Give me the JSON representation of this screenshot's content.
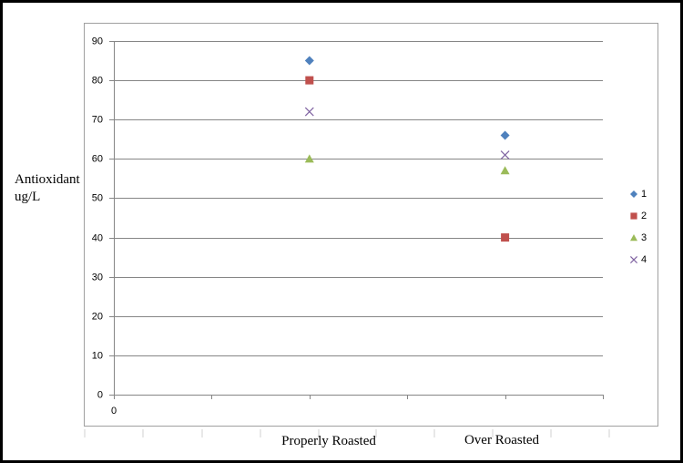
{
  "chart_data": {
    "type": "scatter",
    "y_label": "Antioxidant ug/L",
    "annotations": [
      "Properly Roasted",
      "Over Roasted"
    ],
    "xlim": [
      0,
      5
    ],
    "xticks": [
      0
    ],
    "x_tick_marks": [
      0,
      1,
      2,
      3,
      4,
      5
    ],
    "ylim": [
      0,
      90
    ],
    "yticks": [
      0,
      10,
      20,
      30,
      40,
      50,
      60,
      70,
      80,
      90
    ],
    "grid": true,
    "legend": "right",
    "series": [
      {
        "name": "1",
        "color": "#4f81bd",
        "marker": "diamond",
        "x": [
          2,
          4
        ],
        "values": [
          85,
          66
        ]
      },
      {
        "name": "2",
        "color": "#c0504d",
        "marker": "square",
        "x": [
          2,
          4
        ],
        "values": [
          80,
          40
        ]
      },
      {
        "name": "3",
        "color": "#9bbb59",
        "marker": "triangle",
        "x": [
          2,
          4
        ],
        "values": [
          60,
          57
        ]
      },
      {
        "name": "4",
        "color": "#8064a2",
        "marker": "x",
        "x": [
          2,
          4
        ],
        "values": [
          72,
          61
        ]
      }
    ]
  }
}
